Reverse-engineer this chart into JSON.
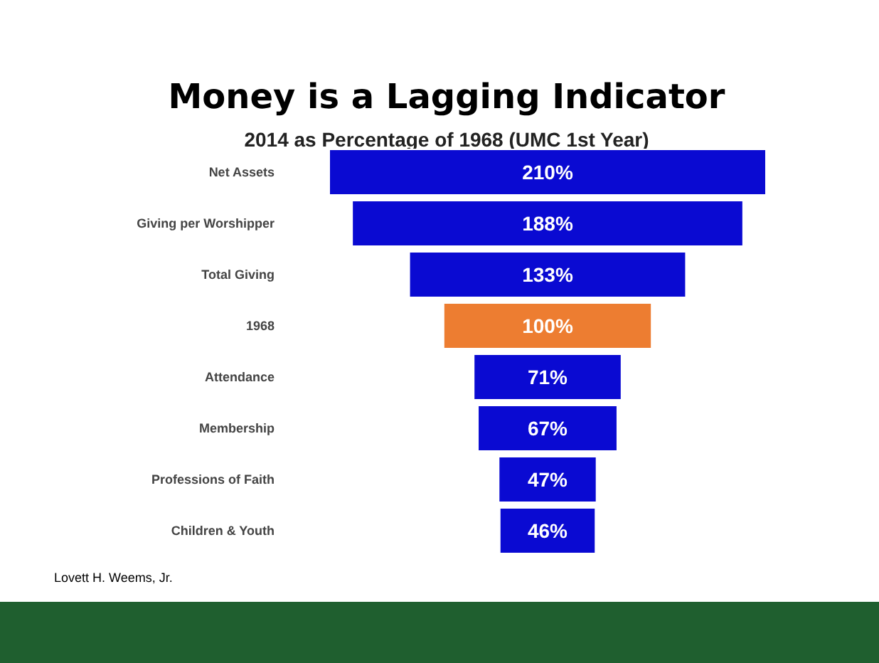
{
  "chart_data": {
    "type": "other",
    "title": "Money is a Lagging Indicator",
    "subtitle": "2014 as Percentage of 1968 (UMC 1st Year)",
    "categories": [
      "Net Assets",
      "Giving per Worshipper",
      "Total Giving",
      "1968",
      "Attendance",
      "Membership",
      "Professions of Faith",
      "Children & Youth"
    ],
    "values": [
      210,
      188,
      133,
      100,
      71,
      67,
      47,
      46
    ],
    "colors": [
      "#0a0ad2",
      "#0a0ad2",
      "#0a0ad2",
      "#ed7d31",
      "#0a0ad2",
      "#0a0ad2",
      "#0a0ad2",
      "#0a0ad2"
    ],
    "value_labels": [
      "210%",
      "188%",
      "133%",
      "100%",
      "71%",
      "67%",
      "47%",
      "46%"
    ],
    "annotations": [
      "Lovett H. Weems, Jr."
    ]
  }
}
